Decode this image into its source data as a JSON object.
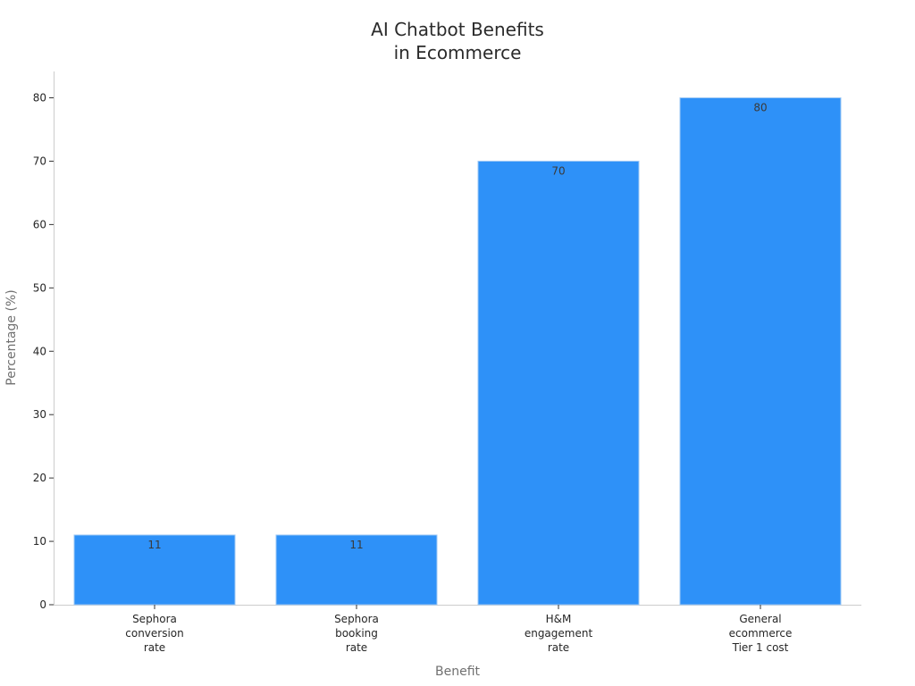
{
  "chart_data": {
    "type": "bar",
    "title": [
      "AI Chatbot Benefits",
      "in Ecommerce"
    ],
    "xlabel": "Benefit",
    "ylabel": "Percentage (%)",
    "categories": [
      [
        "Sephora",
        "conversion",
        "rate"
      ],
      [
        "Sephora",
        "booking",
        "rate"
      ],
      [
        "H&M",
        "engagement",
        "rate"
      ],
      [
        "General",
        "ecommerce",
        "Tier 1 cost"
      ]
    ],
    "values": [
      11,
      11,
      70,
      80
    ],
    "ylim": [
      0,
      84
    ],
    "yticks": [
      0,
      10,
      20,
      30,
      40,
      50,
      60,
      70,
      80
    ],
    "grid": false,
    "bar_color": "#2e91f8",
    "bar_edge_color": "#9ec8f5"
  }
}
